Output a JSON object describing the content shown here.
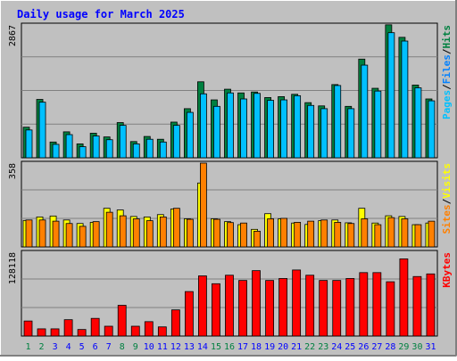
{
  "title": "Daily usage for March 2025",
  "colors": {
    "background": "#c0c0c0",
    "title": "#0000ff",
    "hits": "#008040",
    "files": "#0080ff",
    "pages": "#00c0ff",
    "visits": "#ffff00",
    "sites": "#ff8000",
    "kbytes": "#ff0000",
    "day_normal": "#0000ff",
    "day_weekend": "#008040"
  },
  "chart_data": [
    {
      "type": "bar",
      "panel": "top",
      "legend": [
        "Pages",
        "Files",
        "Hits"
      ],
      "ymax_label": "2867",
      "ylim": [
        0,
        2867
      ],
      "x": [
        1,
        2,
        3,
        4,
        5,
        6,
        7,
        8,
        9,
        10,
        11,
        12,
        13,
        14,
        15,
        16,
        17,
        18,
        19,
        20,
        21,
        22,
        23,
        24,
        25,
        26,
        27,
        28,
        29,
        30,
        31
      ],
      "series": [
        {
          "name": "Hits",
          "values": [
            660,
            1260,
            340,
            560,
            300,
            530,
            450,
            760,
            350,
            460,
            400,
            770,
            1060,
            1640,
            1250,
            1480,
            1400,
            1420,
            1300,
            1320,
            1370,
            1190,
            1120,
            1580,
            1110,
            2130,
            1500,
            2870,
            2600,
            1570,
            1270
          ]
        },
        {
          "name": "Files",
          "values": [
            600,
            1200,
            290,
            500,
            240,
            470,
            390,
            700,
            300,
            400,
            340,
            700,
            980,
            1380,
            1110,
            1400,
            1270,
            1390,
            1240,
            1250,
            1340,
            1130,
            1060,
            1560,
            1060,
            2000,
            1440,
            2700,
            2520,
            1510,
            1230
          ]
        }
      ]
    },
    {
      "type": "bar",
      "panel": "middle",
      "legend": [
        "Sites",
        "Visits"
      ],
      "ymax_label": "358",
      "ylim": [
        0,
        358
      ],
      "x": [
        1,
        2,
        3,
        4,
        5,
        6,
        7,
        8,
        9,
        10,
        11,
        12,
        13,
        14,
        15,
        16,
        17,
        18,
        19,
        20,
        21,
        22,
        23,
        24,
        25,
        26,
        27,
        28,
        29,
        30,
        31
      ],
      "series": [
        {
          "name": "Visits",
          "values": [
            113,
            128,
            132,
            115,
            100,
            105,
            165,
            158,
            130,
            128,
            138,
            162,
            120,
            273,
            120,
            108,
            95,
            75,
            142,
            120,
            102,
            96,
            112,
            115,
            103,
            165,
            102,
            133,
            130,
            95,
            102
          ]
        },
        {
          "name": "Sites",
          "values": [
            115,
            115,
            110,
            100,
            88,
            108,
            148,
            133,
            120,
            112,
            128,
            165,
            118,
            358,
            118,
            104,
            102,
            67,
            120,
            122,
            105,
            110,
            115,
            105,
            100,
            120,
            95,
            125,
            120,
            95,
            110
          ]
        }
      ]
    },
    {
      "type": "bar",
      "panel": "bottom",
      "legend": [
        "KBytes"
      ],
      "ymax_label": "128118",
      "ylim": [
        0,
        128118
      ],
      "x": [
        1,
        2,
        3,
        4,
        5,
        6,
        7,
        8,
        9,
        10,
        11,
        12,
        13,
        14,
        15,
        16,
        17,
        18,
        19,
        20,
        21,
        22,
        23,
        24,
        25,
        26,
        27,
        28,
        29,
        30,
        31
      ],
      "series": [
        {
          "name": "KBytes",
          "values": [
            23000,
            11000,
            11000,
            25000,
            10000,
            27000,
            15000,
            47000,
            15000,
            22000,
            14000,
            40000,
            68000,
            92000,
            80000,
            93000,
            85000,
            100000,
            85000,
            88000,
            101000,
            93000,
            85000,
            85000,
            88000,
            97000,
            97000,
            83000,
            118000,
            91000,
            95000
          ]
        }
      ]
    }
  ],
  "x_labels": [
    "1",
    "2",
    "3",
    "4",
    "5",
    "6",
    "7",
    "8",
    "9",
    "10",
    "11",
    "12",
    "13",
    "14",
    "15",
    "16",
    "17",
    "18",
    "19",
    "20",
    "21",
    "22",
    "23",
    "24",
    "25",
    "26",
    "27",
    "28",
    "29",
    "30",
    "31"
  ],
  "weekend_days": [
    1,
    2,
    8,
    9,
    15,
    16,
    22,
    23,
    29,
    30
  ]
}
